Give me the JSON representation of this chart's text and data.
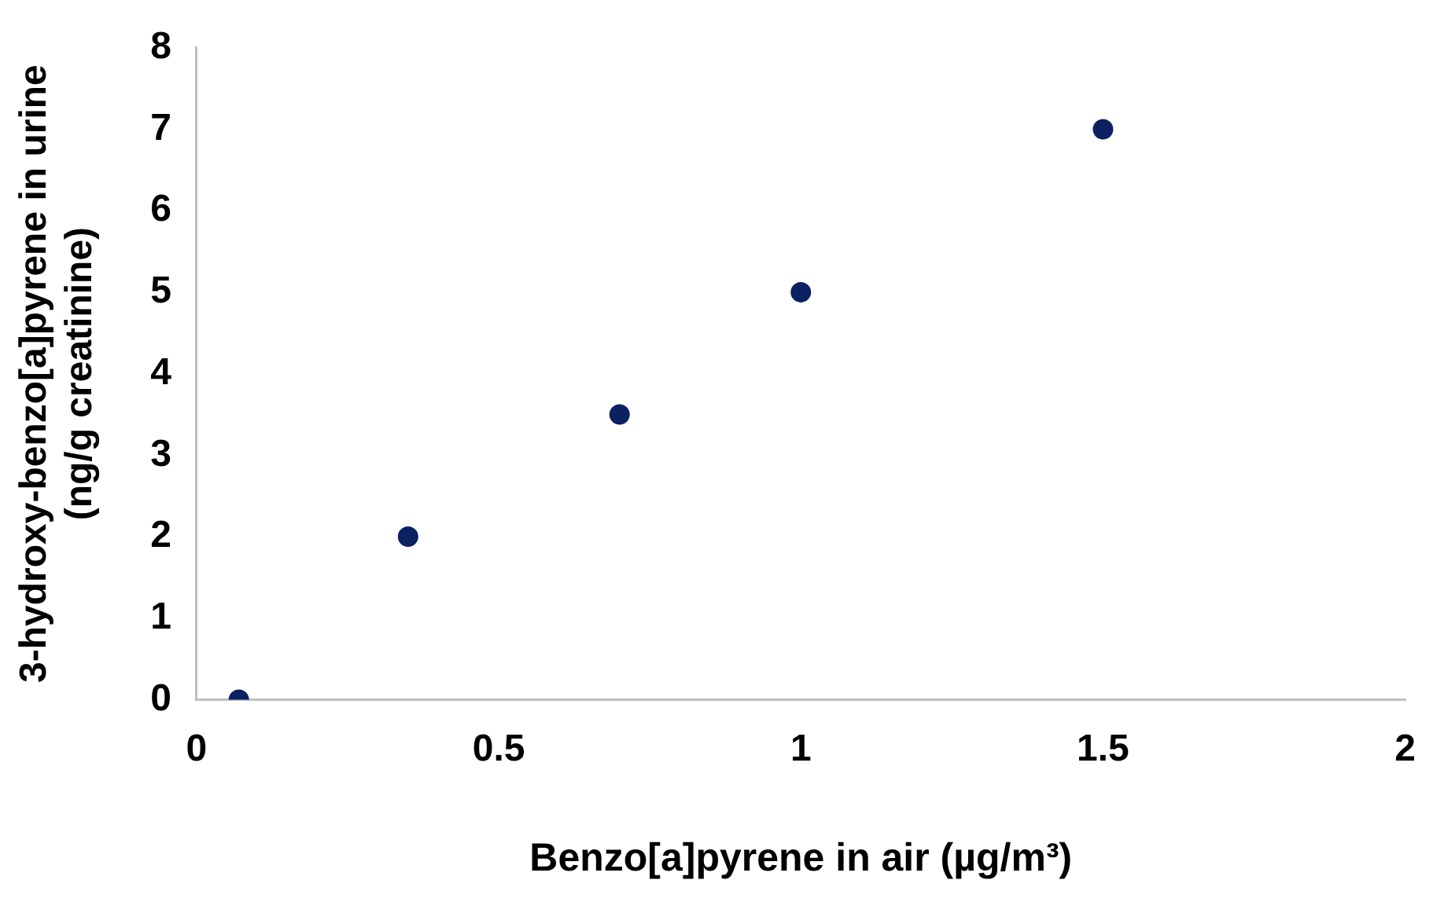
{
  "chart_data": {
    "type": "scatter",
    "xlabel": "Benzo[a]pyrene in air (µg/m³)",
    "ylabel": "3-hydroxy-benzo[a]pyrene in urine (ng/g creatinine)",
    "x": [
      0.07,
      0.35,
      0.7,
      1,
      1.5
    ],
    "series": [
      {
        "color": "#0b2161",
        "values": [
          0,
          2,
          3.5,
          5,
          7
        ]
      }
    ],
    "xlim": [
      0,
      2
    ],
    "xticks": [
      0,
      0.5,
      1,
      1.5,
      2
    ],
    "ylim": [
      0,
      8
    ],
    "yticks": [
      0,
      1,
      2,
      3,
      4,
      5,
      6,
      7,
      8
    ],
    "grid": false,
    "legend": false,
    "marker": "circle"
  }
}
